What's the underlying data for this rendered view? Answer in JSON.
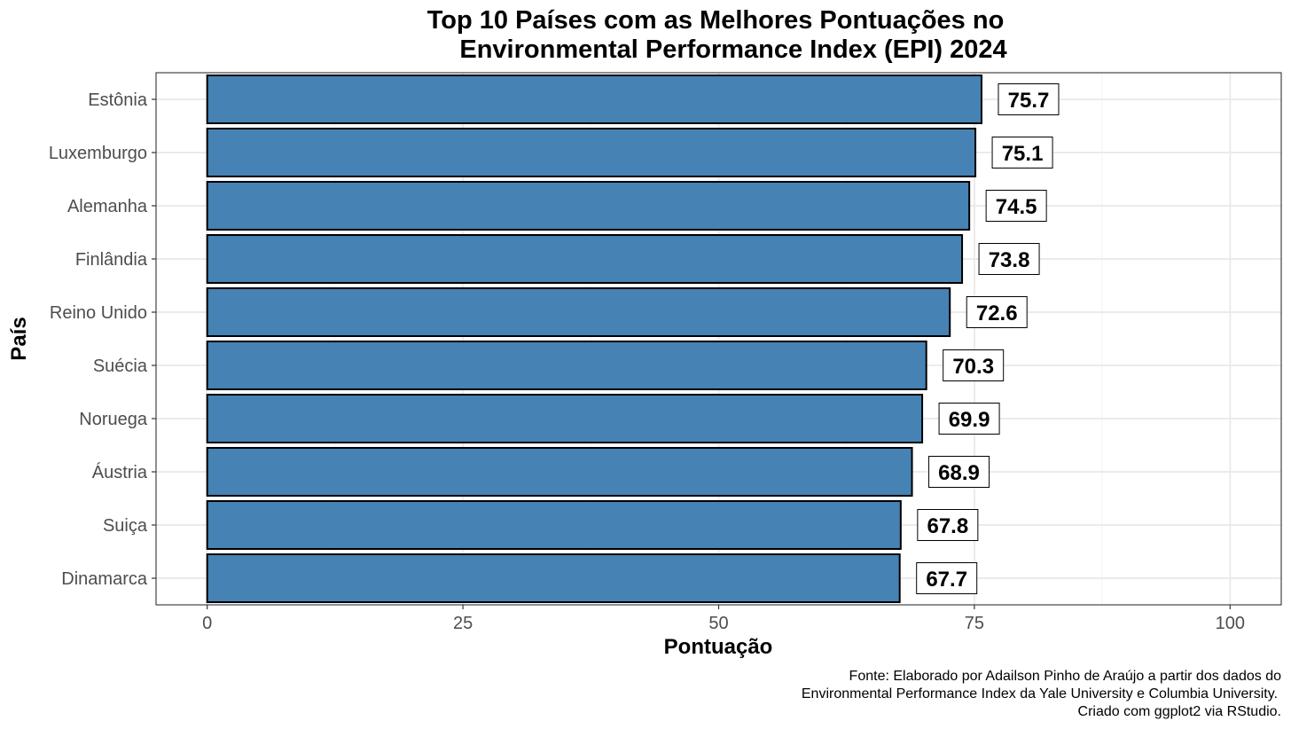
{
  "chart_data": {
    "type": "bar",
    "orientation": "horizontal",
    "title": [
      "Top 10 Países com as Melhores Pontuações no",
      "Environmental Performance Index (EPI) 2024"
    ],
    "xlabel": "Pontuação",
    "ylabel": "País",
    "categories": [
      "Estônia",
      "Luxemburgo",
      "Alemanha",
      "Finlândia",
      "Reino Unido",
      "Suécia",
      "Noruega",
      "Áustria",
      "Suiça",
      "Dinamarca"
    ],
    "values": [
      75.7,
      75.1,
      74.5,
      73.8,
      72.6,
      70.3,
      69.9,
      68.9,
      67.8,
      67.7
    ],
    "data_labels": [
      "75.7",
      "75.1",
      "74.5",
      "73.8",
      "72.6",
      "70.3",
      "69.9",
      "68.9",
      "67.8",
      "67.7"
    ],
    "xlim": [
      -5,
      105
    ],
    "x_ticks": [
      0,
      25,
      50,
      75,
      100
    ],
    "x_tick_labels": [
      "0",
      "25",
      "50",
      "75",
      "100"
    ],
    "grid": true,
    "legend": "none",
    "caption": [
      "Fonte: Elaborado por Adailson Pinho de Araújo a partir dos dados do",
      "Environmental Performance Index da Yale University e Columbia University.",
      "Criado com ggplot2 via RStudio."
    ],
    "colors": {
      "bar_fill": "#4682b4",
      "bar_outline": "#000000",
      "grid_major": "#ebebeb",
      "grid_minor": "#f3f3f3",
      "panel_border": "#333333",
      "tick_label": "#4d4d4d"
    }
  }
}
